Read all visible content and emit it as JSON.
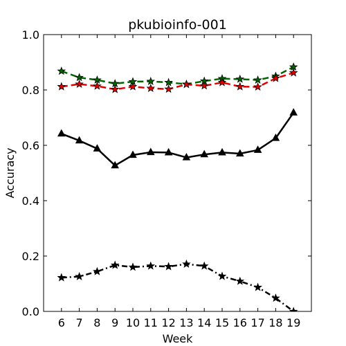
{
  "chart_data": {
    "type": "line",
    "title": "pkubioinfo-001",
    "xlabel": "Week",
    "ylabel": "Accuracy",
    "xlim": [
      5,
      20
    ],
    "ylim": [
      0.0,
      1.0
    ],
    "x": [
      6,
      7,
      8,
      9,
      10,
      11,
      12,
      13,
      14,
      15,
      16,
      17,
      18,
      19
    ],
    "xticks": [
      "6",
      "7",
      "8",
      "9",
      "10",
      "11",
      "12",
      "13",
      "14",
      "15",
      "16",
      "17",
      "18",
      "19"
    ],
    "yticks": [
      "0.0",
      "0.2",
      "0.4",
      "0.6",
      "0.8",
      "1.0"
    ],
    "yticks_values": [
      0.0,
      0.2,
      0.4,
      0.6,
      0.8,
      1.0
    ],
    "grid": false,
    "series": [
      {
        "color": "#006400",
        "line": "dashed",
        "marker": "star",
        "values": [
          0.868,
          0.845,
          0.836,
          0.823,
          0.83,
          0.831,
          0.827,
          0.821,
          0.832,
          0.841,
          0.839,
          0.836,
          0.85,
          0.883
        ]
      },
      {
        "color": "#e00000",
        "line": "dashed",
        "marker": "star",
        "values": [
          0.812,
          0.821,
          0.814,
          0.802,
          0.812,
          0.806,
          0.803,
          0.82,
          0.815,
          0.827,
          0.812,
          0.811,
          0.842,
          0.862
        ]
      },
      {
        "color": "#000000",
        "line": "solid",
        "marker": "triangle",
        "values": [
          0.642,
          0.617,
          0.588,
          0.527,
          0.565,
          0.575,
          0.574,
          0.556,
          0.567,
          0.574,
          0.57,
          0.583,
          0.626,
          0.718
        ]
      },
      {
        "color": "#000000",
        "line": "dashdot",
        "marker": "star",
        "values": [
          0.122,
          0.126,
          0.144,
          0.167,
          0.16,
          0.164,
          0.162,
          0.171,
          0.164,
          0.127,
          0.109,
          0.087,
          0.048,
          0.0
        ]
      }
    ]
  }
}
